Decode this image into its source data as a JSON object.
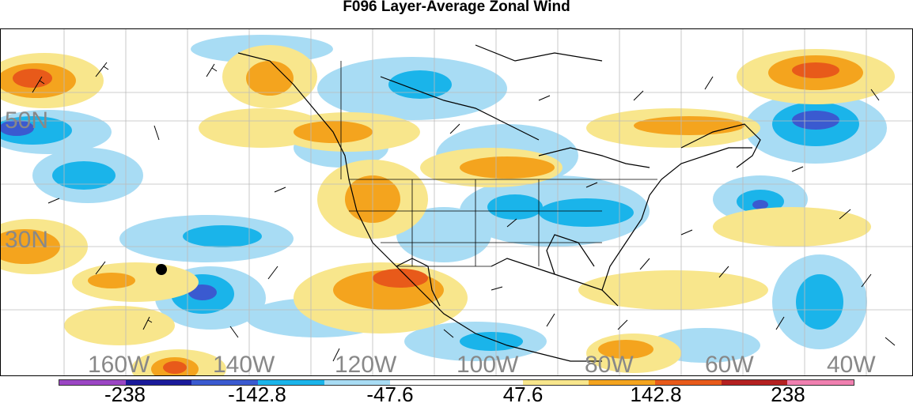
{
  "title": "F096 Layer-Average Zonal Wind",
  "map": {
    "lat_labels": [
      "50N",
      "30N"
    ],
    "lon_labels": [
      "160W",
      "140W",
      "120W",
      "100W",
      "80W",
      "60W",
      "40W"
    ]
  },
  "colorbar": {
    "colors": [
      "#9b46c4",
      "#1a1a9a",
      "#3a5ad0",
      "#1ab4ea",
      "#a8dcf4",
      "#ffffff",
      "#ffffff",
      "#f8e68c",
      "#f4a41e",
      "#e85a1a",
      "#b42020",
      "#f080b0"
    ],
    "labels": [
      "-238",
      "-142.8",
      "-47.6",
      "47.6",
      "142.8",
      "238"
    ]
  }
}
